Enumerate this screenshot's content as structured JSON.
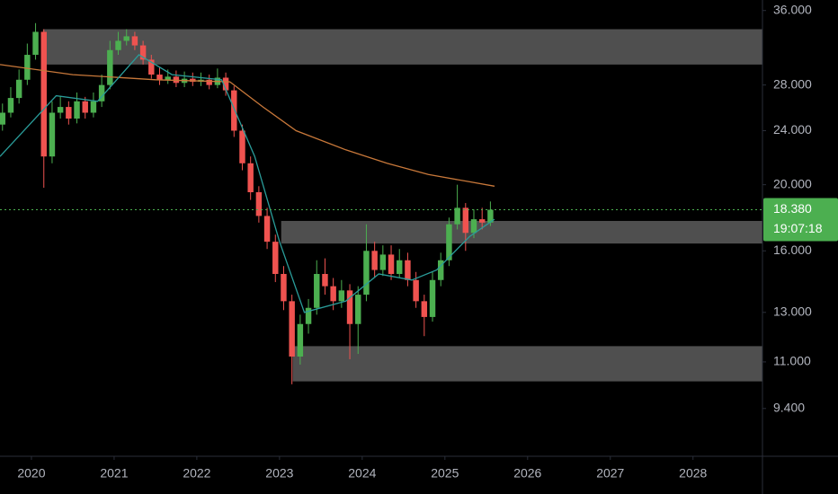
{
  "chart_data": {
    "type": "candlestick",
    "x": [
      2019.65,
      2019.75,
      2019.85,
      2019.95,
      2020.05,
      2020.15,
      2020.25,
      2020.35,
      2020.45,
      2020.55,
      2020.65,
      2020.75,
      2020.85,
      2020.95,
      2021.05,
      2021.15,
      2021.25,
      2021.35,
      2021.45,
      2021.55,
      2021.65,
      2021.75,
      2021.85,
      2021.95,
      2022.05,
      2022.15,
      2022.25,
      2022.35,
      2022.45,
      2022.55,
      2022.65,
      2022.75,
      2022.85,
      2022.95,
      2023.05,
      2023.15,
      2023.25,
      2023.35,
      2023.45,
      2023.55,
      2023.65,
      2023.75,
      2023.85,
      2023.95,
      2024.05,
      2024.15,
      2024.25,
      2024.35,
      2024.45,
      2024.55,
      2024.65,
      2024.75,
      2024.85,
      2024.95,
      2025.05,
      2025.15,
      2025.25,
      2025.35,
      2025.45,
      2025.55
    ],
    "open": [
      24.5,
      25.5,
      26.8,
      28.5,
      31,
      33.5,
      22,
      25.5,
      26,
      25,
      26.5,
      25.5,
      26.5,
      28,
      31.5,
      32.5,
      33,
      32,
      30.5,
      29,
      28.5,
      28.8,
      28.2,
      28.6,
      28.3,
      28.5,
      28,
      28.7,
      27.5,
      24,
      21.5,
      19.5,
      18,
      16.5,
      14.8,
      13.5,
      11.2,
      12.5,
      13.2,
      14.8,
      14.2,
      13.5,
      14,
      12.5,
      13.8,
      16,
      15,
      15.8,
      14.8,
      15.5,
      14.5,
      13.5,
      12.8,
      14.5,
      15.5,
      17.5,
      18.5,
      17,
      17.8,
      17.6
    ],
    "high": [
      26.3,
      27.8,
      29.5,
      32.2,
      34.5,
      33.8,
      26.5,
      27,
      26.5,
      27.3,
      26.9,
      27.3,
      29,
      32.5,
      33.5,
      33.8,
      33.5,
      32.5,
      31,
      29.7,
      29.5,
      29.4,
      29.3,
      29.2,
      29.2,
      29,
      29.6,
      29.2,
      27.9,
      24.5,
      22,
      19.9,
      18.5,
      16.9,
      15.2,
      13.8,
      12.9,
      13.6,
      15.5,
      15.6,
      14.6,
      14.5,
      14.3,
      14.2,
      17.5,
      16.5,
      16.3,
      16.3,
      16.1,
      15.9,
      14.9,
      13.8,
      14.9,
      15.9,
      17.9,
      20,
      18.8,
      18.4,
      18.5,
      18.9
    ],
    "low": [
      24,
      25.1,
      26.3,
      28,
      30.5,
      19.8,
      21.5,
      25,
      24.5,
      24.6,
      25,
      25.1,
      26,
      27.6,
      31,
      32,
      31.5,
      30,
      28.6,
      28,
      28.1,
      27.8,
      27.8,
      27.9,
      27.9,
      27.6,
      27.7,
      27,
      23.5,
      21,
      19,
      17.6,
      16.1,
      14.4,
      13.1,
      10.2,
      10.9,
      12.1,
      12.9,
      13.8,
      13.1,
      13.2,
      11.1,
      11.3,
      13.5,
      14.6,
      14.7,
      14.5,
      14.6,
      14.2,
      13.2,
      12,
      12.6,
      14.2,
      15.2,
      17.2,
      16,
      16.7,
      17.2,
      17.4
    ],
    "close": [
      25.5,
      26.8,
      28.5,
      31,
      33.5,
      22,
      25.5,
      26,
      25,
      26.5,
      25.5,
      26.5,
      28,
      31.5,
      32.5,
      33,
      32,
      30.5,
      29,
      28.5,
      28.8,
      28.2,
      28.6,
      28.3,
      28.5,
      28,
      28.7,
      27.5,
      24,
      21.5,
      19.5,
      18,
      16.5,
      14.8,
      13.5,
      11.2,
      12.5,
      13.2,
      14.8,
      14.2,
      13.5,
      14,
      12.5,
      13.8,
      16,
      15,
      15.8,
      14.8,
      15.5,
      14.5,
      13.5,
      12.8,
      14.5,
      15.5,
      17.5,
      18.5,
      17,
      17.8,
      17.6,
      18.38
    ],
    "up_color": "#4caf50",
    "down_color": "#ef5350",
    "lines": [
      {
        "color": "#c8783a",
        "x": [
          2019.62,
          2020.5,
          2021.5,
          2022.4,
          2022.8,
          2023.2,
          2023.8,
          2024.3,
          2024.8,
          2025.3,
          2025.6
        ],
        "values": [
          30,
          29,
          28.5,
          28.3,
          26,
          24,
          22.5,
          21.5,
          20.7,
          20.2,
          19.9
        ]
      },
      {
        "color": "#2a9d9a",
        "x": [
          2019.62,
          2020.3,
          2020.8,
          2021.3,
          2021.7,
          2022.3,
          2022.7,
          2023.0,
          2023.3,
          2023.8,
          2024.2,
          2024.6,
          2024.9,
          2025.3,
          2025.6
        ],
        "values": [
          22,
          27,
          26.5,
          31,
          29,
          28.5,
          22,
          16.5,
          13,
          13.5,
          14.8,
          14.5,
          15,
          16.8,
          17.8
        ]
      }
    ],
    "zones": [
      {
        "x_start": 2020.14,
        "low": 30.0,
        "high": 33.8
      },
      {
        "x_start": 2023.02,
        "low": 16.4,
        "high": 17.7
      },
      {
        "x_start": 2023.16,
        "low": 10.3,
        "high": 11.6
      }
    ],
    "zone_color": "#5d5d5d",
    "last_price": {
      "value": 18.38,
      "label": "18.380"
    },
    "countdown": "19:07:18",
    "xlim": [
      2019.62,
      2028.84
    ],
    "ylim": [
      8.0,
      37.3
    ],
    "log_scale": true,
    "xticks": [
      2020,
      2021,
      2022,
      2023,
      2024,
      2025,
      2026,
      2027,
      2028
    ],
    "yticks": [
      {
        "value": 9.4,
        "label": "9.400"
      },
      {
        "value": 11,
        "label": "11.000"
      },
      {
        "value": 13,
        "label": "13.000"
      },
      {
        "value": 16,
        "label": "16.000"
      },
      {
        "value": 20,
        "label": "20.000"
      },
      {
        "value": 24,
        "label": "24.000"
      },
      {
        "value": 28,
        "label": "28.000"
      },
      {
        "value": 36,
        "label": "36.000"
      }
    ]
  }
}
